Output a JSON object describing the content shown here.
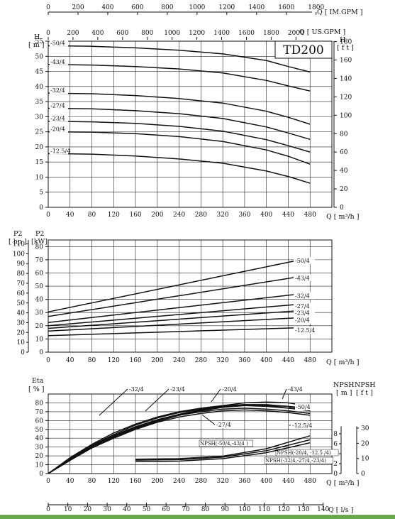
{
  "chart_data": [
    {
      "type": "line",
      "id": "head",
      "title": "TD200",
      "x_top_gpm": {
        "label": "Q [ IM.GPM ]",
        "ticks": [
          0,
          200,
          400,
          600,
          800,
          1000,
          1200,
          1400,
          1600,
          1800
        ]
      },
      "x_top_usgpm": {
        "label": "Q [ US.GPM ]",
        "ticks": [
          0,
          200,
          400,
          600,
          800,
          1000,
          1200,
          1400,
          1600,
          1800,
          2000
        ]
      },
      "xlabel": "Q [ m³/h ]",
      "xlim": [
        0,
        520
      ],
      "xticks": [
        0,
        40,
        80,
        120,
        160,
        200,
        240,
        280,
        320,
        360,
        400,
        440,
        480
      ],
      "y_left": {
        "label": "H",
        "unit": "[ m ]",
        "lim": [
          0,
          55
        ],
        "ticks": [
          0,
          5,
          10,
          15,
          20,
          25,
          30,
          35,
          40,
          45,
          50,
          55
        ]
      },
      "y_right": {
        "label": "H",
        "unit": "[ f t ]",
        "ticks": [
          0,
          20,
          40,
          60,
          80,
          100,
          120,
          140,
          160,
          180
        ]
      },
      "series": [
        {
          "name": "-50/4",
          "x": [
            0,
            80,
            160,
            240,
            320,
            400,
            440,
            480
          ],
          "values": [
            53.5,
            53.3,
            52.8,
            52.0,
            50.8,
            48.6,
            46.6,
            44.8
          ]
        },
        {
          "name": "-43/4",
          "x": [
            0,
            80,
            160,
            240,
            320,
            400,
            440,
            480
          ],
          "values": [
            47.3,
            47.1,
            46.6,
            45.8,
            44.5,
            42.0,
            40.2,
            38.5
          ]
        },
        {
          "name": "-32/4",
          "x": [
            0,
            80,
            160,
            240,
            320,
            400,
            440,
            480
          ],
          "values": [
            37.8,
            37.6,
            37.0,
            36.0,
            34.5,
            31.8,
            29.8,
            27.5
          ]
        },
        {
          "name": "-27/4",
          "x": [
            0,
            80,
            160,
            240,
            320,
            400,
            440,
            480
          ],
          "values": [
            32.8,
            32.6,
            32.0,
            31.0,
            29.4,
            26.6,
            24.6,
            22.5
          ]
        },
        {
          "name": "-23/4",
          "x": [
            0,
            80,
            160,
            240,
            320,
            400,
            440,
            480
          ],
          "values": [
            28.5,
            28.3,
            27.8,
            26.8,
            25.2,
            22.4,
            20.4,
            18.3
          ]
        },
        {
          "name": "-20/4",
          "x": [
            0,
            80,
            160,
            240,
            320,
            400,
            440,
            480
          ],
          "values": [
            25.0,
            24.9,
            24.4,
            23.4,
            21.8,
            19.0,
            16.9,
            14.3
          ]
        },
        {
          "name": "-12.5/4",
          "x": [
            0,
            80,
            160,
            240,
            320,
            400,
            440,
            480
          ],
          "values": [
            17.8,
            17.6,
            17.0,
            16.0,
            14.6,
            12.0,
            10.2,
            8.0
          ]
        }
      ]
    },
    {
      "type": "line",
      "id": "power",
      "xlabel": "Q [ m³/h ]",
      "xlim": [
        0,
        520
      ],
      "xticks": [
        0,
        40,
        80,
        120,
        160,
        200,
        240,
        280,
        320,
        360,
        400,
        440,
        480
      ],
      "y_left_hp": {
        "label": "P2",
        "unit": "[ hp ]",
        "ticks": [
          0,
          10,
          20,
          30,
          40,
          50,
          60,
          70,
          80,
          90,
          100,
          110
        ]
      },
      "y_left_kw": {
        "label": "P2",
        "unit": "[kW]",
        "lim": [
          0,
          85
        ],
        "ticks": [
          0,
          10,
          20,
          30,
          40,
          50,
          60,
          70,
          80
        ]
      },
      "series": [
        {
          "name": "-50/4",
          "x": [
            0,
            480
          ],
          "values": [
            30.5,
            71.5
          ]
        },
        {
          "name": "-43/4",
          "x": [
            0,
            480
          ],
          "values": [
            27.0,
            58.5
          ]
        },
        {
          "name": "-32/4",
          "x": [
            0,
            480
          ],
          "values": [
            22.5,
            45.0
          ]
        },
        {
          "name": "-27/4",
          "x": [
            0,
            480
          ],
          "values": [
            20.0,
            37.0
          ]
        },
        {
          "name": "-23/4",
          "x": [
            0,
            480
          ],
          "values": [
            18.0,
            32.0
          ]
        },
        {
          "name": "-20/4",
          "x": [
            0,
            480
          ],
          "values": [
            16.0,
            26.5
          ]
        },
        {
          "name": "-12.5/4",
          "x": [
            0,
            480
          ],
          "values": [
            12.5,
            18.8
          ]
        }
      ]
    },
    {
      "type": "line",
      "id": "efficiency",
      "xlabel": "Q [ m³/h ]",
      "xlim": [
        0,
        520
      ],
      "xticks": [
        0,
        40,
        80,
        120,
        160,
        200,
        240,
        280,
        320,
        360,
        400,
        440,
        480
      ],
      "x_bottom_ls": {
        "label": "Q [ l/s ]",
        "ticks": [
          0,
          10,
          20,
          30,
          40,
          50,
          60,
          70,
          80,
          90,
          100,
          110,
          120,
          130,
          140
        ]
      },
      "y_left": {
        "label": "Eta",
        "unit": "[ % ]",
        "lim": [
          0,
          90
        ],
        "ticks": [
          0,
          10,
          20,
          30,
          40,
          50,
          60,
          70,
          80
        ]
      },
      "y_right_m": {
        "label": "NPSH",
        "unit": "[ m ]",
        "ticks": [
          0,
          2,
          4,
          6,
          8
        ]
      },
      "y_right_ft": {
        "label": "NPSH",
        "unit": "[ f t ]",
        "ticks": [
          0,
          10,
          20,
          30
        ]
      },
      "series": [
        {
          "name": "-32/4",
          "x": [
            0,
            40,
            80,
            120,
            160,
            200,
            240,
            280,
            320,
            360,
            400,
            440,
            480
          ],
          "values": [
            0,
            18,
            33,
            46,
            56,
            64,
            70,
            74,
            77,
            78,
            77,
            74,
            71
          ]
        },
        {
          "name": "-23/4",
          "x": [
            0,
            40,
            80,
            120,
            160,
            200,
            240,
            280,
            320,
            360,
            400,
            440,
            480
          ],
          "values": [
            0,
            17,
            32,
            44,
            55,
            63,
            69,
            73,
            76,
            77,
            76,
            74,
            72
          ]
        },
        {
          "name": "-20/4",
          "x": [
            0,
            40,
            80,
            120,
            160,
            200,
            240,
            280,
            320,
            360,
            400,
            440,
            480
          ],
          "values": [
            0,
            16,
            31,
            43,
            53,
            61,
            67,
            72,
            76,
            78,
            78,
            76,
            72
          ]
        },
        {
          "name": "-43/4",
          "x": [
            0,
            40,
            80,
            120,
            160,
            200,
            240,
            280,
            320,
            360,
            400,
            440,
            480
          ],
          "values": [
            0,
            16,
            30,
            42,
            52,
            60,
            67,
            72,
            77,
            80,
            81,
            80,
            76
          ]
        },
        {
          "name": "-50/4",
          "x": [
            0,
            40,
            80,
            120,
            160,
            200,
            240,
            280,
            320,
            360,
            400,
            440,
            480
          ],
          "values": [
            0,
            15,
            29,
            41,
            51,
            59,
            66,
            71,
            75,
            77,
            77,
            76,
            74
          ]
        },
        {
          "name": "-27/4",
          "x": [
            0,
            40,
            80,
            120,
            160,
            200,
            240,
            280,
            320,
            360,
            400,
            440,
            480
          ],
          "values": [
            0,
            15,
            30,
            42,
            52,
            60,
            66,
            70,
            73,
            74,
            73,
            71,
            68
          ]
        },
        {
          "name": "-12.5/4",
          "x": [
            0,
            40,
            80,
            120,
            160,
            200,
            240,
            280,
            320,
            360,
            400,
            440,
            480
          ],
          "values": [
            0,
            15,
            29,
            40,
            50,
            58,
            64,
            68,
            71,
            72,
            71,
            69,
            66
          ]
        }
      ],
      "npsh_series": [
        {
          "name": "NPSH(-50/4,-43/4 )",
          "x": [
            160,
            240,
            320,
            400,
            480
          ],
          "values_m": [
            2.9,
            3.0,
            3.5,
            5.0,
            7.6
          ]
        },
        {
          "name": "NPSH(-20/4, -12.5 /4)",
          "x": [
            160,
            240,
            320,
            400,
            480
          ],
          "values_m": [
            2.7,
            2.8,
            3.3,
            4.6,
            6.8
          ]
        },
        {
          "name": "NPSH(-32/4,-27/4,-23/4)",
          "x": [
            160,
            240,
            320,
            400,
            480
          ],
          "values_m": [
            2.4,
            2.5,
            3.0,
            4.2,
            6.2
          ]
        }
      ]
    }
  ]
}
